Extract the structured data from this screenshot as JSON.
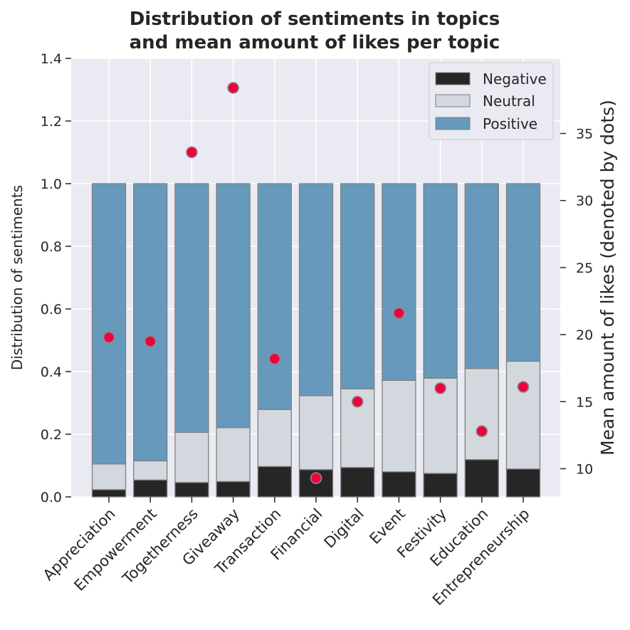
{
  "chart_data": {
    "type": "bar",
    "stacked": true,
    "title": [
      "Distribution of sentiments in topics",
      "and mean amount of likes per topic"
    ],
    "ylabel": "Distribution of sentiments",
    "y2label": "Mean amount of likes (denoted by dots)",
    "ylim": [
      0,
      1.4
    ],
    "y2lim": [
      7.9,
      40.6
    ],
    "yticks": [
      "0.0",
      "0.2",
      "0.4",
      "0.6",
      "0.8",
      "1.0",
      "1.2",
      "1.4"
    ],
    "y2ticks": [
      "10",
      "15",
      "20",
      "25",
      "30",
      "35"
    ],
    "grid": true,
    "legend_position": "top-right",
    "categories": [
      "Appreciation",
      "Empowerment",
      "Togetherness",
      "Giveaway",
      "Transaction",
      "Financial",
      "Digital",
      "Event",
      "Festivity",
      "Education",
      "Entrepreneurship"
    ],
    "series": [
      {
        "name": "Negative",
        "color": "#262626",
        "values": [
          0.023,
          0.054,
          0.046,
          0.049,
          0.097,
          0.087,
          0.094,
          0.08,
          0.075,
          0.119,
          0.089
        ]
      },
      {
        "name": "Neutral",
        "color": "#d3d8de",
        "values": [
          0.082,
          0.061,
          0.16,
          0.172,
          0.182,
          0.236,
          0.251,
          0.292,
          0.304,
          0.291,
          0.344
        ]
      },
      {
        "name": "Positive",
        "color": "#6699bb",
        "values": [
          0.895,
          0.885,
          0.794,
          0.779,
          0.721,
          0.677,
          0.655,
          0.628,
          0.621,
          0.59,
          0.567
        ]
      }
    ],
    "likes": {
      "type": "scatter",
      "axis": "right",
      "color": "#f0003c",
      "values": [
        19.8,
        19.5,
        33.6,
        38.4,
        18.2,
        9.3,
        15.0,
        21.6,
        16.0,
        12.8,
        16.1
      ]
    }
  }
}
